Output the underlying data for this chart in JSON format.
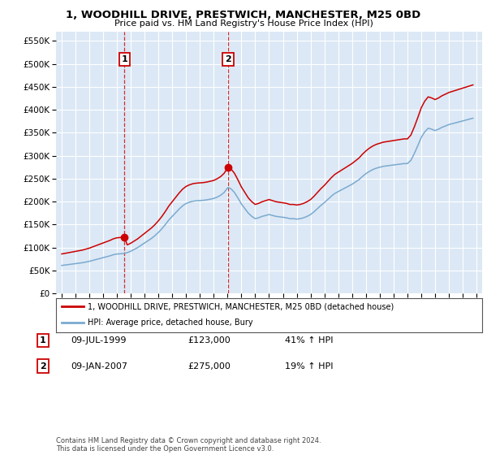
{
  "title": "1, WOODHILL DRIVE, PRESTWICH, MANCHESTER, M25 0BD",
  "subtitle": "Price paid vs. HM Land Registry's House Price Index (HPI)",
  "legend_label_red": "1, WOODHILL DRIVE, PRESTWICH, MANCHESTER, M25 0BD (detached house)",
  "legend_label_blue": "HPI: Average price, detached house, Bury",
  "footnote": "Contains HM Land Registry data © Crown copyright and database right 2024.\nThis data is licensed under the Open Government Licence v3.0.",
  "sale1_date": "09-JUL-1999",
  "sale1_price": 123000,
  "sale1_hpi": "41% ↑ HPI",
  "sale1_label": "1",
  "sale2_date": "09-JAN-2007",
  "sale2_price": 275000,
  "sale2_hpi": "19% ↑ HPI",
  "sale2_label": "2",
  "ylim": [
    0,
    570000
  ],
  "yticks": [
    0,
    50000,
    100000,
    150000,
    200000,
    250000,
    300000,
    350000,
    400000,
    450000,
    500000,
    550000
  ],
  "background_color": "#ffffff",
  "plot_bg_color": "#dce8f5",
  "grid_color": "#ffffff",
  "red_color": "#cc0000",
  "blue_color": "#7aaad0",
  "marker1_x": 1999.54,
  "marker1_y": 123000,
  "marker2_x": 2007.03,
  "marker2_y": 275000,
  "vline1_x": 1999.54,
  "vline2_x": 2007.03,
  "xlim_left": 1994.6,
  "xlim_right": 2025.4
}
